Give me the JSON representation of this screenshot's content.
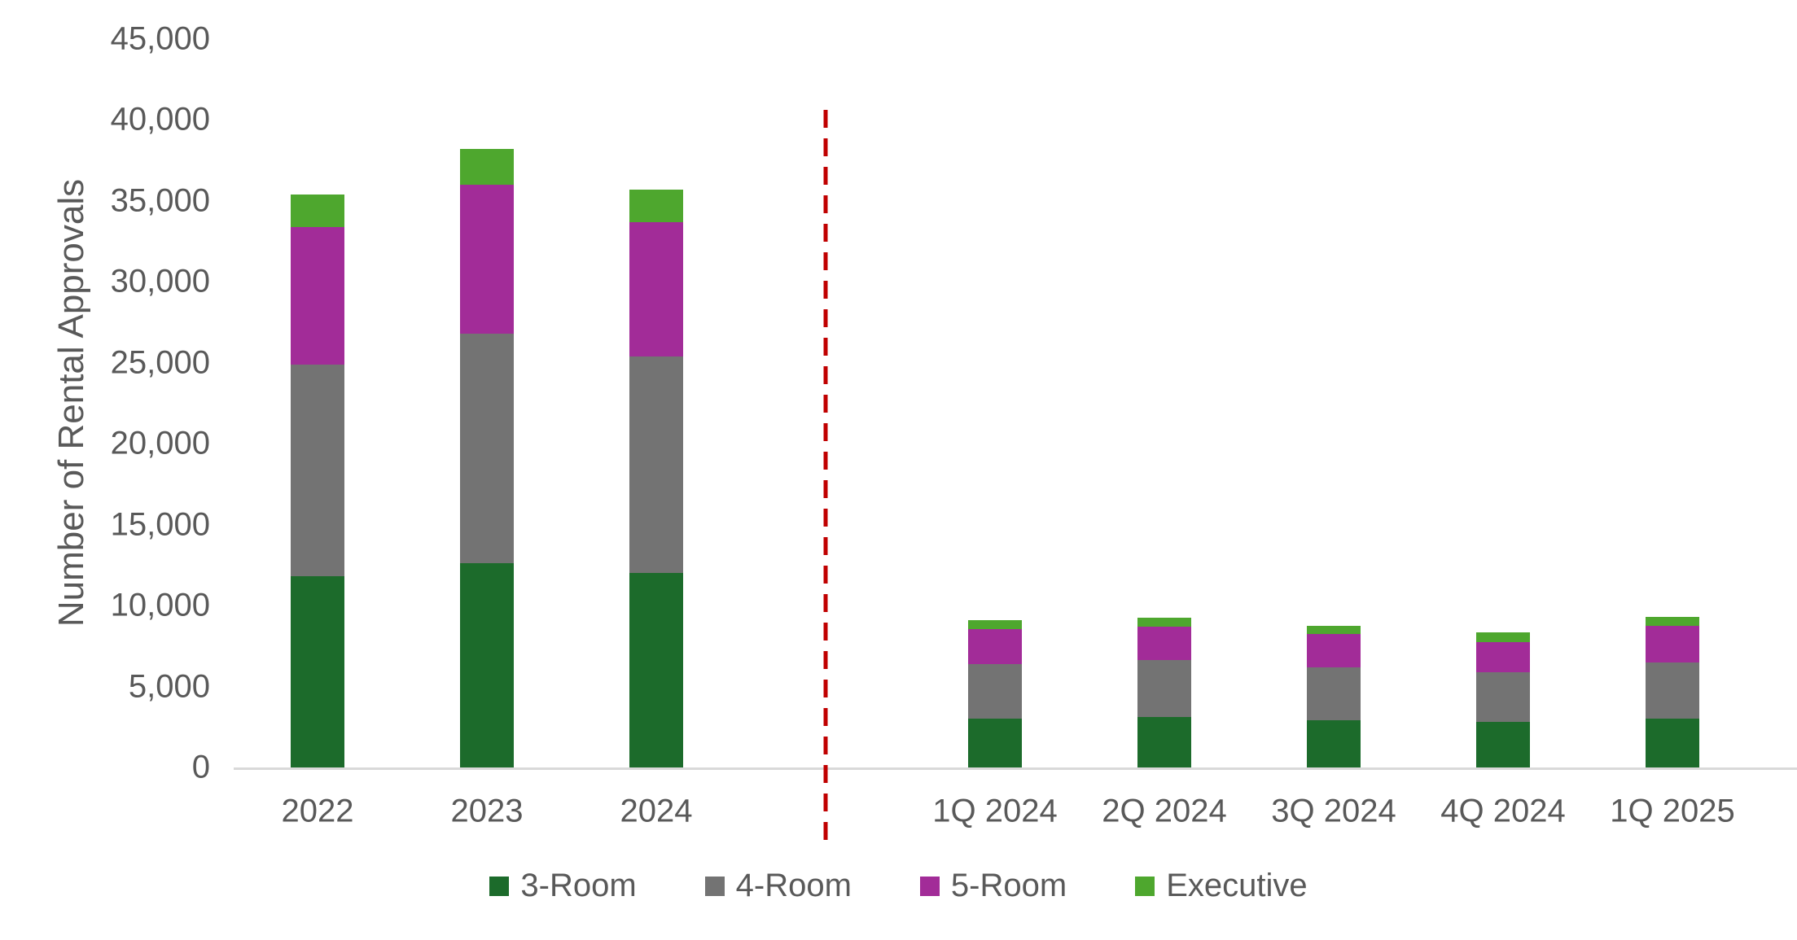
{
  "chart_data": {
    "type": "bar",
    "stacked": true,
    "title": "",
    "xlabel": "",
    "ylabel": "Number of Rental Approvals",
    "ylim": [
      0,
      45000
    ],
    "ytick_step": 5000,
    "ytick_labels": [
      "0",
      "5,000",
      "10,000",
      "15,000",
      "20,000",
      "25,000",
      "30,000",
      "35,000",
      "40,000",
      "45,000"
    ],
    "grid": false,
    "legend_position": "bottom",
    "categories": [
      "2022",
      "2023",
      "2024",
      "1Q 2024",
      "2Q 2024",
      "3Q 2024",
      "4Q 2024",
      "1Q 2025"
    ],
    "series": [
      {
        "name": "3-Room",
        "color": "#1C6B2B",
        "values": [
          11800,
          12600,
          12000,
          3000,
          3100,
          2900,
          2800,
          3000
        ]
      },
      {
        "name": "4-Room",
        "color": "#737373",
        "values": [
          13100,
          14200,
          13400,
          3400,
          3550,
          3300,
          3100,
          3500
        ]
      },
      {
        "name": "5-Room",
        "color": "#A22C98",
        "values": [
          8500,
          9200,
          8300,
          2150,
          2050,
          2050,
          1850,
          2250
        ]
      },
      {
        "name": "Executive",
        "color": "#4EA72E",
        "values": [
          2000,
          2200,
          2000,
          550,
          550,
          500,
          600,
          550
        ]
      }
    ],
    "totals": [
      35400,
      38200,
      35700,
      9100,
      9250,
      8750,
      8350,
      9300
    ],
    "annotations": [
      {
        "type": "vline",
        "name": "period-divider",
        "style": "dashed",
        "color": "#C00000",
        "between": [
          "2024",
          "1Q 2024"
        ]
      }
    ]
  },
  "colors": {
    "background": "#FFFFFF",
    "text": "#595959",
    "axis_line": "#D9D9D9",
    "divider_red": "#C00000"
  }
}
